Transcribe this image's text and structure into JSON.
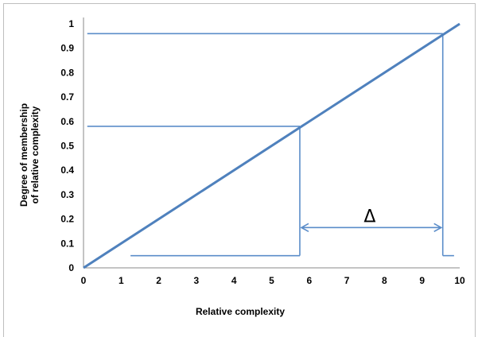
{
  "chart_data": {
    "type": "line",
    "xlabel": "Relative complexity",
    "ylabel_lines": [
      "Degree of membership",
      "of relative complexity"
    ],
    "xlim": [
      0,
      10
    ],
    "ylim": [
      0,
      1
    ],
    "x_ticks": [
      "0",
      "1",
      "2",
      "3",
      "4",
      "5",
      "6",
      "7",
      "8",
      "9",
      "10"
    ],
    "y_ticks": [
      "0",
      "0.1",
      "0.2",
      "0.3",
      "0.4",
      "0.5",
      "0.6",
      "0.7",
      "0.8",
      "0.9",
      "1"
    ],
    "grid": false,
    "series": [
      {
        "x": [
          0,
          10
        ],
        "y": [
          0,
          1
        ],
        "color": "#4f81bd"
      }
    ],
    "reference_lines": [
      {
        "x": [
          0.1,
          9.55
        ],
        "y": [
          0.96,
          0.96
        ]
      },
      {
        "x": [
          9.55,
          9.55
        ],
        "y": [
          0.96,
          0.05
        ]
      },
      {
        "x": [
          9.55,
          9.85
        ],
        "y": [
          0.05,
          0.05
        ]
      },
      {
        "x": [
          0.1,
          5.75
        ],
        "y": [
          0.58,
          0.58
        ]
      },
      {
        "x": [
          5.75,
          5.75
        ],
        "y": [
          0.58,
          0.05
        ]
      },
      {
        "x": [
          1.25,
          5.75
        ],
        "y": [
          0.05,
          0.05
        ]
      }
    ],
    "interval": {
      "x_start": 5.75,
      "x_end": 9.55,
      "y": 0.165,
      "label": "Δ"
    },
    "line_color": "#4f81bd",
    "ref_color": "#5b8dc9"
  }
}
